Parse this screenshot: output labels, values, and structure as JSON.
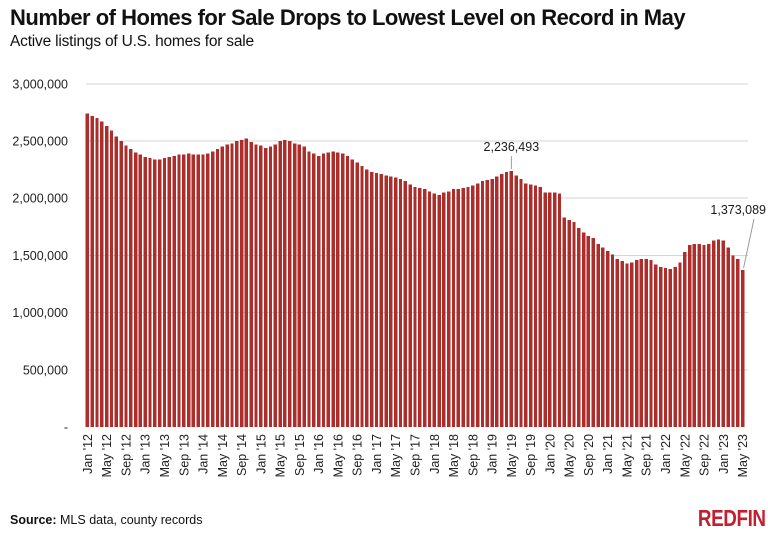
{
  "header": {
    "title": "Number of Homes for Sale Drops to Lowest Level on Record in May",
    "subtitle": "Active listings of U.S. homes for sale"
  },
  "footer": {
    "source_label": "Source:",
    "source_text": " MLS data, county records",
    "logo_text": "REDFIN",
    "logo_color": "#c22030"
  },
  "chart_data": {
    "type": "bar",
    "title": "Number of Homes for Sale Drops to Lowest Level on Record in May",
    "subtitle": "Active listings of U.S. homes for sale",
    "x_start": "Jan 2012",
    "x_end": "May 2023",
    "frequency": "monthly",
    "ylim": [
      0,
      3000000
    ],
    "grid": "horizontal",
    "legend": "none",
    "bar_color": "#ad2d2b",
    "gridline_color": "#d6d6d6",
    "annotation_line_color": "#9a9a9a",
    "values": [
      2740000,
      2720000,
      2700000,
      2670000,
      2630000,
      2590000,
      2540000,
      2500000,
      2460000,
      2430000,
      2400000,
      2380000,
      2360000,
      2350000,
      2340000,
      2340000,
      2350000,
      2360000,
      2370000,
      2380000,
      2380000,
      2390000,
      2380000,
      2380000,
      2380000,
      2390000,
      2410000,
      2430000,
      2450000,
      2470000,
      2480000,
      2500000,
      2510000,
      2520000,
      2490000,
      2470000,
      2460000,
      2440000,
      2450000,
      2470000,
      2500000,
      2510000,
      2500000,
      2480000,
      2470000,
      2450000,
      2410000,
      2390000,
      2370000,
      2390000,
      2400000,
      2410000,
      2400000,
      2390000,
      2370000,
      2340000,
      2310000,
      2280000,
      2250000,
      2230000,
      2220000,
      2210000,
      2200000,
      2190000,
      2180000,
      2170000,
      2150000,
      2120000,
      2100000,
      2090000,
      2080000,
      2060000,
      2040000,
      2030000,
      2050000,
      2060000,
      2080000,
      2080000,
      2090000,
      2100000,
      2110000,
      2130000,
      2150000,
      2160000,
      2170000,
      2190000,
      2210000,
      2230000,
      2236493,
      2200000,
      2170000,
      2130000,
      2120000,
      2110000,
      2100000,
      2050000,
      2050000,
      2050000,
      2040000,
      1830000,
      1810000,
      1790000,
      1740000,
      1700000,
      1670000,
      1650000,
      1600000,
      1570000,
      1540000,
      1510000,
      1470000,
      1450000,
      1430000,
      1440000,
      1460000,
      1470000,
      1470000,
      1460000,
      1420000,
      1400000,
      1390000,
      1380000,
      1400000,
      1440000,
      1530000,
      1590000,
      1600000,
      1600000,
      1590000,
      1600000,
      1630000,
      1640000,
      1630000,
      1570000,
      1500000,
      1470000,
      1373089
    ],
    "x_tick_step": 4,
    "x_tick_labels": [
      "Jan '12",
      "May '12",
      "Sep '12",
      "Jan '13",
      "May '13",
      "Sep '13",
      "Jan '14",
      "May '14",
      "Sep '14",
      "Jan '15",
      "May '15",
      "Sep '15",
      "Jan '16",
      "May '16",
      "Sep '16",
      "Jan '17",
      "May '17",
      "Sep '17",
      "Jan '18",
      "May '18",
      "Sep '18",
      "Jan '19",
      "May '19",
      "Sep '19",
      "Jan '20",
      "May '20",
      "Sep '20",
      "Jan '21",
      "May '21",
      "Sep '21",
      "Jan '22",
      "May '22",
      "Sep '22",
      "Jan '23",
      "May '23"
    ],
    "y_ticks": [
      {
        "value": 3000000,
        "label": "3,000,000"
      },
      {
        "value": 2500000,
        "label": "2,500,000"
      },
      {
        "value": 2000000,
        "label": "2,000,000"
      },
      {
        "value": 1500000,
        "label": "1,500,000"
      },
      {
        "value": 1000000,
        "label": "1,000,000"
      },
      {
        "value": 500000,
        "label": "500,000"
      },
      {
        "value": 0,
        "label": "-"
      }
    ],
    "annotations": [
      {
        "label": "2,236,493",
        "month": "May 2019",
        "month_index": 88,
        "value": 2236493,
        "placement": "above"
      },
      {
        "label": "1,373,089",
        "month": "May 2023",
        "month_index": 136,
        "value": 1373089,
        "placement": "right-edge"
      }
    ]
  }
}
